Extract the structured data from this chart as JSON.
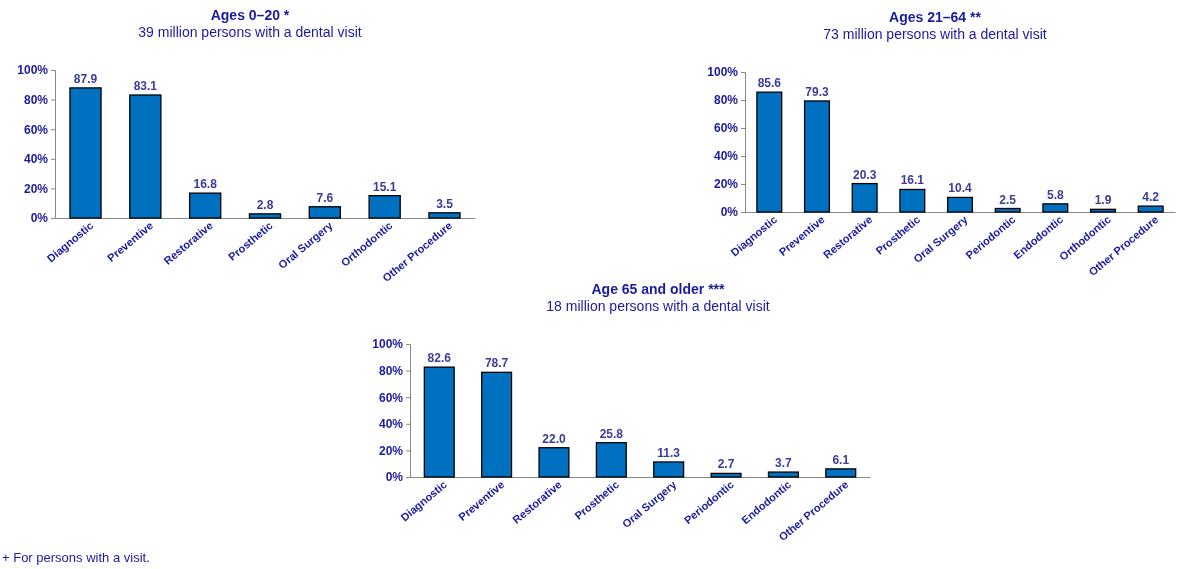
{
  "chart_data": [
    {
      "type": "bar",
      "title": "Ages 0–20 *",
      "subtitle": "39 million persons with a dental visit",
      "categories": [
        "Diagnostic",
        "Preventive",
        "Restorative",
        "Prosthetic",
        "Oral Surgery",
        "Orthodontic",
        "Other Procedure"
      ],
      "values": [
        87.9,
        83.1,
        16.8,
        2.8,
        7.6,
        15.1,
        3.5
      ],
      "color": "#0070c0",
      "ylim": [
        0,
        100
      ],
      "yticks": [
        {
          "value": 0,
          "label": "0%"
        },
        {
          "value": 20,
          "label": "20%"
        },
        {
          "value": 40,
          "label": "40%"
        },
        {
          "value": 60,
          "label": "60%"
        },
        {
          "value": 80,
          "label": "80%"
        },
        {
          "value": 100,
          "label": "100%"
        }
      ],
      "data_labels": true,
      "grid": false,
      "annotations": [
        "+ For persons with a visit."
      ]
    },
    {
      "type": "bar",
      "title": "Ages 21–64 **",
      "subtitle": "73 million persons with a dental visit",
      "categories": [
        "Diagnostic",
        "Preventive",
        "Restorative",
        "Prosthetic",
        "Oral Surgery",
        "Periodontic",
        "Endodontic",
        "Orthodontic",
        "Other Procedure"
      ],
      "values": [
        85.6,
        79.3,
        20.3,
        16.1,
        10.4,
        2.5,
        5.8,
        1.9,
        4.2
      ],
      "color": "#0070c0",
      "ylim": [
        0,
        100
      ],
      "yticks": [
        {
          "value": 0,
          "label": "0%"
        },
        {
          "value": 20,
          "label": "20%"
        },
        {
          "value": 40,
          "label": "40%"
        },
        {
          "value": 60,
          "label": "60%"
        },
        {
          "value": 80,
          "label": "80%"
        },
        {
          "value": 100,
          "label": "100%"
        }
      ],
      "data_labels": true,
      "grid": false
    },
    {
      "type": "bar",
      "title": "Age 65 and older ***",
      "subtitle": "18 million persons with a dental visit",
      "categories": [
        "Diagnostic",
        "Preventive",
        "Restorative",
        "Prosthetic",
        "Oral Surgery",
        "Periodontic",
        "Endodontic",
        "Other Procedure"
      ],
      "values": [
        82.6,
        78.7,
        22.0,
        25.8,
        11.3,
        2.7,
        3.7,
        6.1
      ],
      "value_labels": [
        "82.6",
        "78.7",
        "22.0",
        "25.8",
        "11.3",
        "2.7",
        "3.7",
        "6.1"
      ],
      "color": "#0070c0",
      "ylim": [
        0,
        100
      ],
      "yticks": [
        {
          "value": 0,
          "label": "0%"
        },
        {
          "value": 20,
          "label": "20%"
        },
        {
          "value": 40,
          "label": "40%"
        },
        {
          "value": 60,
          "label": "60%"
        },
        {
          "value": 80,
          "label": "80%"
        },
        {
          "value": 100,
          "label": "100%"
        }
      ],
      "grid": false
    }
  ]
}
